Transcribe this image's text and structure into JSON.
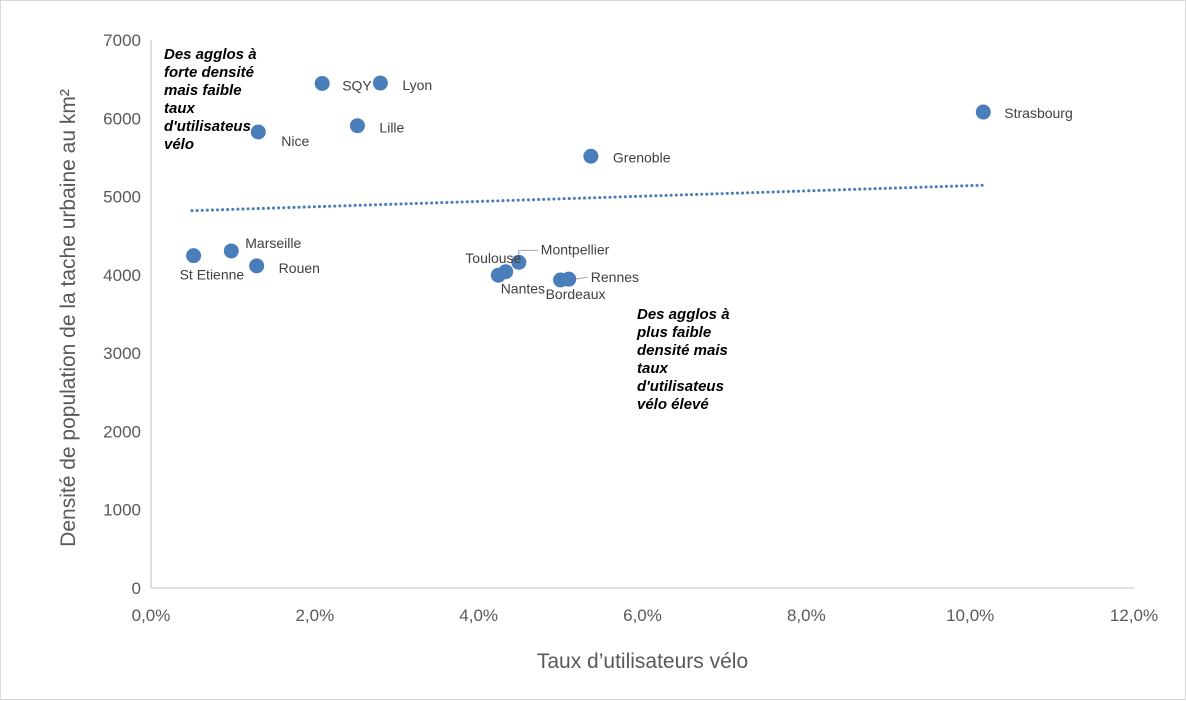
{
  "chart_data": {
    "type": "scatter",
    "title": "",
    "xlabel": "Taux d’utilisateurs vélo",
    "ylabel": "Densité de population de la tache urbaine  au km²",
    "xlim": [
      0,
      0.12
    ],
    "ylim": [
      0,
      7000
    ],
    "x_ticks": [
      "0,0%",
      "2,0%",
      "4,0%",
      "6,0%",
      "8,0%",
      "10,0%",
      "12,0%"
    ],
    "y_ticks": [
      "0",
      "1000",
      "2000",
      "3000",
      "4000",
      "5000",
      "6000",
      "7000"
    ],
    "grid": false,
    "legend": "none",
    "marker_color": "#4a7ebb",
    "trendline": {
      "type": "linear",
      "style": "dotted",
      "color": "#4a7ebb",
      "x_start": 0.005,
      "y_start": 4820,
      "x_end": 0.1015,
      "y_end": 5145
    },
    "points": [
      {
        "label": "St Etienne",
        "x": 0.0052,
        "y": 4245
      },
      {
        "label": "Marseille",
        "x": 0.0098,
        "y": 4305
      },
      {
        "label": "Rouen",
        "x": 0.0129,
        "y": 4115
      },
      {
        "label": "Nice",
        "x": 0.0131,
        "y": 5825
      },
      {
        "label": "SQY",
        "x": 0.0209,
        "y": 6445
      },
      {
        "label": "Lille",
        "x": 0.0252,
        "y": 5905
      },
      {
        "label": "Lyon",
        "x": 0.028,
        "y": 6450
      },
      {
        "label": "Toulouse",
        "x": 0.0424,
        "y": 3995
      },
      {
        "label": "Nantes",
        "x": 0.0433,
        "y": 4040
      },
      {
        "label": "Montpellier",
        "x": 0.0449,
        "y": 4160
      },
      {
        "label": "Bordeaux",
        "x": 0.05,
        "y": 3935
      },
      {
        "label": "Rennes",
        "x": 0.051,
        "y": 3945
      },
      {
        "label": "Grenoble",
        "x": 0.0537,
        "y": 5515
      },
      {
        "label": "Strasbourg",
        "x": 0.1016,
        "y": 6080
      }
    ],
    "annotations": [
      {
        "lines": [
          "Des agglos à",
          "forte densité",
          "mais faible",
          "taux",
          "d'utilisateus",
          "vélo"
        ]
      },
      {
        "lines": [
          "Des agglos à",
          "plus faible",
          "densité mais",
          "taux",
          "d'utilisateus",
          "vélo élevé"
        ]
      }
    ]
  }
}
